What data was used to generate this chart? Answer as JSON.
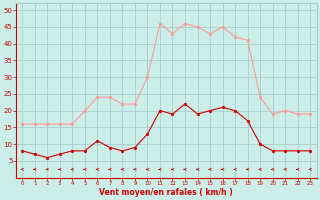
{
  "x": [
    0,
    1,
    2,
    3,
    4,
    5,
    6,
    7,
    8,
    9,
    10,
    11,
    12,
    13,
    14,
    15,
    16,
    17,
    18,
    19,
    20,
    21,
    22,
    23
  ],
  "wind_avg": [
    8,
    7,
    6,
    7,
    8,
    8,
    11,
    9,
    8,
    9,
    13,
    20,
    19,
    22,
    19,
    20,
    21,
    20,
    17,
    10,
    8,
    8,
    8,
    8
  ],
  "wind_gust": [
    16,
    16,
    16,
    16,
    16,
    20,
    24,
    24,
    22,
    22,
    30,
    46,
    43,
    46,
    45,
    43,
    45,
    42,
    41,
    24,
    19,
    20,
    19,
    19
  ],
  "bg_color": "#cceee8",
  "grid_color": "#aacccc",
  "line_avg_color": "#cc0000",
  "line_gust_color": "#ff9999",
  "arrow_color": "#cc0000",
  "xlabel": "Vent moyen/en rafales ( km/h )",
  "xlabel_color": "#cc0000",
  "tick_color": "#cc0000",
  "ylim": [
    0,
    52
  ],
  "yticks": [
    5,
    10,
    15,
    20,
    25,
    30,
    35,
    40,
    45,
    50
  ],
  "xlim": [
    -0.5,
    23.5
  ],
  "xticks": [
    0,
    1,
    2,
    3,
    4,
    5,
    6,
    7,
    8,
    9,
    10,
    11,
    12,
    13,
    14,
    15,
    16,
    17,
    18,
    19,
    20,
    21,
    22,
    23
  ]
}
